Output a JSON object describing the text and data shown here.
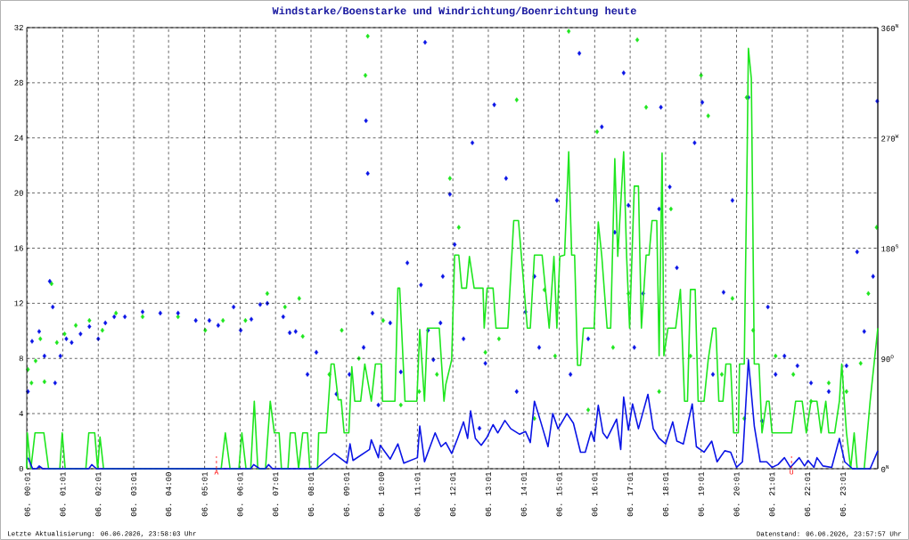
{
  "chart_data": {
    "type": "line",
    "title": "Windstarke/Boenstarke und Windrichtung/Boenrichtung heute",
    "xlim": [
      "2026-06-06T00:00",
      "2026-06-07T00:00"
    ],
    "ylim": [
      0,
      32
    ],
    "y2lim": [
      0,
      360
    ],
    "grid": true,
    "xticks": [
      {
        "value": "2026-06-06T00:01",
        "label": "06. 00:01"
      },
      {
        "value": "2026-06-06T01:01",
        "label": "06. 01:01"
      },
      {
        "value": "2026-06-06T02:01",
        "label": "06. 02:01"
      },
      {
        "value": "2026-06-06T03:01",
        "label": "06. 03:01"
      },
      {
        "value": "2026-06-06T04:00",
        "label": "06. 04:00"
      },
      {
        "value": "2026-06-06T05:01",
        "label": "06. 05:01"
      },
      {
        "value": "2026-06-06T06:01",
        "label": "06. 06:01"
      },
      {
        "value": "2026-06-06T07:01",
        "label": "06. 07:01"
      },
      {
        "value": "2026-06-06T08:01",
        "label": "06. 08:01"
      },
      {
        "value": "2026-06-06T09:01",
        "label": "06. 09:01"
      },
      {
        "value": "2026-06-06T10:00",
        "label": "06. 10:00"
      },
      {
        "value": "2026-06-06T11:01",
        "label": "06. 11:01"
      },
      {
        "value": "2026-06-06T12:01",
        "label": "06. 12:01"
      },
      {
        "value": "2026-06-06T13:01",
        "label": "06. 13:01"
      },
      {
        "value": "2026-06-06T14:01",
        "label": "06. 14:01"
      },
      {
        "value": "2026-06-06T15:01",
        "label": "06. 15:01"
      },
      {
        "value": "2026-06-06T16:01",
        "label": "06. 16:01"
      },
      {
        "value": "2026-06-06T17:01",
        "label": "06. 17:01"
      },
      {
        "value": "2026-06-06T18:01",
        "label": "06. 18:01"
      },
      {
        "value": "2026-06-06T19:01",
        "label": "06. 19:01"
      },
      {
        "value": "2026-06-06T20:01",
        "label": "06. 20:01"
      },
      {
        "value": "2026-06-06T21:01",
        "label": "06. 21:01"
      },
      {
        "value": "2026-06-06T22:01",
        "label": "06. 22:01"
      },
      {
        "value": "2026-06-06T23:01",
        "label": "06. 23:01"
      }
    ],
    "yticks": [
      0,
      4,
      8,
      12,
      16,
      20,
      24,
      28,
      32
    ],
    "y2ticks": [
      {
        "value": 0,
        "label": "0$^{N}$"
      },
      {
        "value": 90,
        "label": "90$^{O}$"
      },
      {
        "value": 180,
        "label": "180$^{S}$"
      },
      {
        "value": 270,
        "label": "270$^{W}$"
      },
      {
        "value": 360,
        "label": "360$^{N}$"
      }
    ],
    "annotations": [
      {
        "text": "A",
        "x": "2026-06-06T05:21",
        "y": 0
      },
      {
        "text": "U",
        "x": "2026-06-06T21:34",
        "y": 0
      },
      "Letzte Aktualisierung: 06.06.2026, 23:58:03 Uhr",
      "Datenstand: 06.06.2026, 23:57:57 Uhr"
    ],
    "series": [
      {
        "type": "scatter",
        "axis": "y2",
        "marker": "diamond",
        "color": "#1ee61e",
        "x": [
          "2026-06-06T00:02",
          "2026-06-06T00:08",
          "2026-06-06T00:15",
          "2026-06-06T00:23",
          "2026-06-06T00:30",
          "2026-06-06T00:42",
          "2026-06-06T00:51",
          "2026-06-06T01:04",
          "2026-06-06T01:23",
          "2026-06-06T01:46",
          "2026-06-06T02:08",
          "2026-06-06T02:31",
          "2026-06-06T03:16",
          "2026-06-06T04:16",
          "2026-06-06T05:02",
          "2026-06-06T05:32",
          "2026-06-06T06:10",
          "2026-06-06T06:47",
          "2026-06-06T07:17",
          "2026-06-06T07:41",
          "2026-06-06T07:47",
          "2026-06-06T08:32",
          "2026-06-06T08:53",
          "2026-06-06T09:22",
          "2026-06-06T09:33",
          "2026-06-06T09:37",
          "2026-06-06T10:03",
          "2026-06-06T10:33",
          "2026-06-06T11:04",
          "2026-06-06T11:34",
          "2026-06-06T11:56",
          "2026-06-06T12:11",
          "2026-06-06T12:56",
          "2026-06-06T13:19",
          "2026-06-06T13:49",
          "2026-06-06T14:19",
          "2026-06-06T14:36",
          "2026-06-06T14:54",
          "2026-06-06T15:17",
          "2026-06-06T15:50",
          "2026-06-06T16:05",
          "2026-06-06T16:32",
          "2026-06-06T16:58",
          "2026-06-06T17:13",
          "2026-06-06T17:28",
          "2026-06-06T17:50",
          "2026-06-06T18:10",
          "2026-06-06T18:43",
          "2026-06-06T19:01",
          "2026-06-06T19:13",
          "2026-06-06T19:36",
          "2026-06-06T19:54",
          "2026-06-06T20:14",
          "2026-06-06T20:18",
          "2026-06-06T20:29",
          "2026-06-06T21:07",
          "2026-06-06T21:37",
          "2026-06-06T22:07",
          "2026-06-06T22:37",
          "2026-06-06T23:07",
          "2026-06-06T23:31",
          "2026-06-06T23:44",
          "2026-06-06T23:58"
        ],
        "values": [
          81,
          70,
          88,
          106,
          71,
          151,
          103,
          110,
          117,
          121,
          113,
          127,
          124,
          124,
          113,
          121,
          121,
          143,
          132,
          139,
          108,
          77,
          113,
          90,
          321,
          353,
          121,
          52,
          63,
          77,
          237,
          197,
          95,
          106,
          301,
          41,
          146,
          92,
          357,
          48,
          275,
          99,
          143,
          350,
          295,
          63,
          212,
          92,
          321,
          288,
          77,
          139,
          41,
          303,
          113,
          92,
          77,
          55,
          70,
          63,
          86,
          143,
          197
        ]
      },
      {
        "type": "scatter",
        "axis": "y2",
        "marker": "diamond",
        "color": "#0a14e6",
        "x": [
          "2026-06-06T00:02",
          "2026-06-06T00:09",
          "2026-06-06T00:21",
          "2026-06-06T00:30",
          "2026-06-06T00:39",
          "2026-06-06T00:44",
          "2026-06-06T00:48",
          "2026-06-06T00:57",
          "2026-06-06T01:07",
          "2026-06-06T01:16",
          "2026-06-06T01:31",
          "2026-06-06T01:46",
          "2026-06-06T02:01",
          "2026-06-06T02:13",
          "2026-06-06T02:28",
          "2026-06-06T02:46",
          "2026-06-06T03:16",
          "2026-06-06T03:46",
          "2026-06-06T04:16",
          "2026-06-06T04:46",
          "2026-06-06T05:09",
          "2026-06-06T05:24",
          "2026-06-06T05:50",
          "2026-06-06T06:02",
          "2026-06-06T06:20",
          "2026-06-06T06:35",
          "2026-06-06T06:47",
          "2026-06-06T07:14",
          "2026-06-06T07:25",
          "2026-06-06T07:35",
          "2026-06-06T07:55",
          "2026-06-06T08:10",
          "2026-06-06T08:44",
          "2026-06-06T09:06",
          "2026-06-06T09:30",
          "2026-06-06T09:34",
          "2026-06-06T09:37",
          "2026-06-06T09:45",
          "2026-06-06T09:55",
          "2026-06-06T10:15",
          "2026-06-06T10:33",
          "2026-06-06T10:44",
          "2026-06-06T11:07",
          "2026-06-06T11:14",
          "2026-06-06T11:19",
          "2026-06-06T11:28",
          "2026-06-06T11:40",
          "2026-06-06T11:44",
          "2026-06-06T11:56",
          "2026-06-06T12:04",
          "2026-06-06T12:19",
          "2026-06-06T12:34",
          "2026-06-06T12:46",
          "2026-06-06T12:56",
          "2026-06-06T13:11",
          "2026-06-06T13:31",
          "2026-06-06T13:49",
          "2026-06-06T14:04",
          "2026-06-06T14:19",
          "2026-06-06T14:27",
          "2026-06-06T14:57",
          "2026-06-06T15:20",
          "2026-06-06T15:35",
          "2026-06-06T15:50",
          "2026-06-06T16:13",
          "2026-06-06T16:35",
          "2026-06-06T16:50",
          "2026-06-06T16:58",
          "2026-06-06T17:08",
          "2026-06-06T17:23",
          "2026-06-06T17:50",
          "2026-06-06T17:53",
          "2026-06-06T18:08",
          "2026-06-06T18:20",
          "2026-06-06T18:50",
          "2026-06-06T19:03",
          "2026-06-06T19:21",
          "2026-06-06T19:39",
          "2026-06-06T19:54",
          "2026-06-06T20:21",
          "2026-06-06T20:44",
          "2026-06-06T20:54",
          "2026-06-06T21:07",
          "2026-06-06T21:22",
          "2026-06-06T21:44",
          "2026-06-06T22:07",
          "2026-06-06T22:37",
          "2026-06-06T23:07",
          "2026-06-06T23:25",
          "2026-06-06T23:37",
          "2026-06-06T23:52",
          "2026-06-06T23:59"
        ],
        "values": [
          63,
          104,
          112,
          92,
          153,
          132,
          70,
          92,
          106,
          103,
          110,
          116,
          106,
          119,
          124,
          124,
          128,
          127,
          127,
          121,
          121,
          117,
          132,
          113,
          122,
          134,
          135,
          124,
          111,
          112,
          77,
          95,
          61,
          77,
          99,
          284,
          241,
          127,
          52,
          119,
          79,
          168,
          150,
          348,
          113,
          89,
          119,
          157,
          224,
          183,
          106,
          266,
          33,
          86,
          297,
          237,
          63,
          128,
          157,
          99,
          219,
          77,
          339,
          106,
          279,
          193,
          323,
          215,
          99,
          143,
          212,
          295,
          230,
          164,
          266,
          299,
          77,
          144,
          219,
          303,
          39,
          132,
          77,
          92,
          84,
          70,
          63,
          84,
          177,
          112,
          157,
          300
        ]
      },
      {
        "type": "line",
        "color": "#1ee61e",
        "x": [
          "2026-06-06T00:00",
          "2026-06-06T00:01",
          "2026-06-06T00:07",
          "2026-06-06T00:14",
          "2026-06-06T00:29",
          "2026-06-06T00:37",
          "2026-06-06T00:56",
          "2026-06-06T01:00",
          "2026-06-06T01:05",
          "2026-06-06T01:40",
          "2026-06-06T01:45",
          "2026-06-06T01:55",
          "2026-06-06T02:00",
          "2026-06-06T02:04",
          "2026-06-06T02:10",
          "2026-06-06T05:29",
          "2026-06-06T05:36",
          "2026-06-06T05:44",
          "2026-06-06T05:59",
          "2026-06-06T06:04",
          "2026-06-06T06:11",
          "2026-06-06T06:19",
          "2026-06-06T06:25",
          "2026-06-06T06:31",
          "2026-06-06T06:44",
          "2026-06-06T06:52",
          "2026-06-06T06:59",
          "2026-06-06T07:07",
          "2026-06-06T07:11",
          "2026-06-06T07:22",
          "2026-06-06T07:26",
          "2026-06-06T07:34",
          "2026-06-06T07:40",
          "2026-06-06T07:47",
          "2026-06-06T07:55",
          "2026-06-06T07:59",
          "2026-06-06T08:12",
          "2026-06-06T08:14",
          "2026-06-06T08:27",
          "2026-06-06T08:35",
          "2026-06-06T08:40",
          "2026-06-06T08:47",
          "2026-06-06T08:52",
          "2026-06-06T08:57",
          "2026-06-06T09:05",
          "2026-06-06T09:10",
          "2026-06-06T09:15",
          "2026-06-06T09:25",
          "2026-06-06T09:32",
          "2026-06-06T09:43",
          "2026-06-06T09:50",
          "2026-06-06T10:00",
          "2026-06-06T10:02",
          "2026-06-06T10:23",
          "2026-06-06T10:28",
          "2026-06-06T10:31",
          "2026-06-06T10:40",
          "2026-06-06T11:00",
          "2026-06-06T11:05",
          "2026-06-06T11:13",
          "2026-06-06T11:18",
          "2026-06-06T11:38",
          "2026-06-06T11:46",
          "2026-06-06T11:49",
          "2026-06-06T11:59",
          "2026-06-06T12:04",
          "2026-06-06T12:11",
          "2026-06-06T12:16",
          "2026-06-06T12:24",
          "2026-06-06T12:29",
          "2026-06-06T12:37",
          "2026-06-06T12:52",
          "2026-06-06T12:54",
          "2026-06-06T12:59",
          "2026-06-06T13:09",
          "2026-06-06T13:14",
          "2026-06-06T13:34",
          "2026-06-06T13:44",
          "2026-06-06T13:52",
          "2026-06-06T14:07",
          "2026-06-06T14:12",
          "2026-06-06T14:19",
          "2026-06-06T14:32",
          "2026-06-06T14:44",
          "2026-06-06T14:52",
          "2026-06-06T14:57",
          "2026-06-06T15:02",
          "2026-06-06T15:10",
          "2026-06-06T15:17",
          "2026-06-06T15:22",
          "2026-06-06T15:27",
          "2026-06-06T15:32",
          "2026-06-06T15:37",
          "2026-06-06T15:42",
          "2026-06-06T16:00",
          "2026-06-06T16:07",
          "2026-06-06T16:13",
          "2026-06-06T16:22",
          "2026-06-06T16:28",
          "2026-06-06T16:35",
          "2026-06-06T16:40",
          "2026-06-06T16:50",
          "2026-06-06T16:55",
          "2026-06-06T17:00",
          "2026-06-06T17:08",
          "2026-06-06T17:15",
          "2026-06-06T17:20",
          "2026-06-06T17:28",
          "2026-06-06T17:33",
          "2026-06-06T17:38",
          "2026-06-06T17:46",
          "2026-06-06T17:50",
          "2026-06-06T17:55",
          "2026-06-06T17:58",
          "2026-06-06T18:05",
          "2026-06-06T18:18",
          "2026-06-06T18:26",
          "2026-06-06T18:33",
          "2026-06-06T18:38",
          "2026-06-06T18:43",
          "2026-06-06T18:51",
          "2026-06-06T18:56",
          "2026-06-06T19:06",
          "2026-06-06T19:13",
          "2026-06-06T19:21",
          "2026-06-06T19:26",
          "2026-06-06T19:31",
          "2026-06-06T19:38",
          "2026-06-06T19:43",
          "2026-06-06T19:51",
          "2026-06-06T19:56",
          "2026-06-06T20:04",
          "2026-06-06T20:06",
          "2026-06-06T20:14",
          "2026-06-06T20:19",
          "2026-06-06T20:21",
          "2026-06-06T20:26",
          "2026-06-06T20:31",
          "2026-06-06T20:39",
          "2026-06-06T20:44",
          "2026-06-06T20:52",
          "2026-06-06T20:56",
          "2026-06-06T21:01",
          "2026-06-06T21:34",
          "2026-06-06T21:41",
          "2026-06-06T21:52",
          "2026-06-06T21:59",
          "2026-06-06T22:07",
          "2026-06-06T22:17",
          "2026-06-06T22:24",
          "2026-06-06T22:32",
          "2026-06-06T22:37",
          "2026-06-06T22:47",
          "2026-06-06T22:55",
          "2026-06-06T22:59",
          "2026-06-06T23:07",
          "2026-06-06T23:14",
          "2026-06-06T23:20",
          "2026-06-06T23:25",
          "2026-06-06T23:37",
          "2026-06-06T23:47",
          "2026-06-07T00:00"
        ],
        "values": [
          0,
          2.6,
          0,
          2.6,
          2.6,
          0,
          0,
          2.6,
          0,
          0,
          2.6,
          2.6,
          0,
          2.3,
          0,
          0,
          2.6,
          0,
          0,
          2.6,
          0,
          0,
          4.9,
          0,
          0,
          4.9,
          2.6,
          2.6,
          0,
          0,
          2.6,
          2.6,
          0,
          2.6,
          2.6,
          0,
          0,
          2.6,
          2.6,
          7.6,
          7.6,
          5.0,
          5.0,
          2.6,
          2.6,
          7.4,
          4.9,
          4.9,
          7.6,
          4.9,
          7.6,
          7.6,
          4.9,
          4.9,
          13.1,
          13.1,
          4.9,
          4.9,
          10.1,
          4.9,
          10.2,
          10.2,
          4.9,
          6.1,
          7.9,
          15.5,
          15.5,
          13.1,
          13.1,
          15.4,
          13.1,
          13.1,
          10.2,
          13.1,
          13.1,
          10.2,
          10.2,
          18.0,
          18.0,
          10.2,
          10.2,
          15.5,
          15.5,
          10.2,
          15.4,
          10.2,
          15.4,
          15.5,
          23.0,
          15.5,
          15.5,
          7.5,
          7.5,
          10.2,
          10.2,
          17.9,
          15.4,
          10.2,
          10.2,
          22.5,
          15.4,
          23.0,
          15.4,
          10.2,
          20.5,
          20.5,
          10.2,
          15.5,
          15.5,
          18.0,
          18.0,
          8.2,
          22.9,
          8.2,
          10.2,
          10.2,
          13.0,
          4.9,
          4.9,
          13.0,
          13.0,
          4.9,
          4.9,
          7.9,
          10.2,
          10.2,
          4.9,
          4.9,
          7.6,
          7.6,
          2.6,
          2.6,
          7.6,
          7.6,
          23.1,
          30.5,
          28.3,
          7.6,
          7.6,
          2.6,
          4.9,
          4.9,
          2.6,
          2.6,
          4.9,
          4.9,
          2.6,
          4.9,
          4.9,
          2.6,
          4.9,
          2.6,
          2.6,
          4.9,
          7.6,
          2.6,
          0,
          2.6,
          0,
          0,
          4.9,
          10.2
        ]
      },
      {
        "type": "line",
        "color": "#0a14e6",
        "x": [
          "2026-06-06T00:02",
          "2026-06-06T00:10",
          "2026-06-06T00:17",
          "2026-06-06T00:21",
          "2026-06-06T00:27",
          "2026-06-06T01:45",
          "2026-06-06T01:50",
          "2026-06-06T01:58",
          "2026-06-06T06:19",
          "2026-06-06T06:24",
          "2026-06-06T06:34",
          "2026-06-06T06:44",
          "2026-06-06T06:49",
          "2026-06-06T06:56",
          "2026-06-06T08:10",
          "2026-06-06T08:40",
          "2026-06-06T09:02",
          "2026-06-06T09:07",
          "2026-06-06T09:12",
          "2026-06-06T09:40",
          "2026-06-06T09:43",
          "2026-06-06T09:55",
          "2026-06-06T09:58",
          "2026-06-06T10:15",
          "2026-06-06T10:28",
          "2026-06-06T10:38",
          "2026-06-06T11:01",
          "2026-06-06T11:05",
          "2026-06-06T11:13",
          "2026-06-06T11:31",
          "2026-06-06T11:41",
          "2026-06-06T11:49",
          "2026-06-06T11:59",
          "2026-06-06T12:09",
          "2026-06-06T12:19",
          "2026-06-06T12:26",
          "2026-06-06T12:31",
          "2026-06-06T12:39",
          "2026-06-06T12:49",
          "2026-06-06T12:59",
          "2026-06-06T13:09",
          "2026-06-06T13:17",
          "2026-06-06T13:29",
          "2026-06-06T13:39",
          "2026-06-06T13:54",
          "2026-06-06T14:04",
          "2026-06-06T14:12",
          "2026-06-06T14:19",
          "2026-06-06T14:29",
          "2026-06-06T14:42",
          "2026-06-06T14:50",
          "2026-06-06T14:59",
          "2026-06-06T15:14",
          "2026-06-06T15:25",
          "2026-06-06T15:37",
          "2026-06-06T15:45",
          "2026-06-06T15:55",
          "2026-06-06T16:00",
          "2026-06-06T16:07",
          "2026-06-06T16:15",
          "2026-06-06T16:22",
          "2026-06-06T16:38",
          "2026-06-06T16:45",
          "2026-06-06T16:50",
          "2026-06-06T16:58",
          "2026-06-06T17:05",
          "2026-06-06T17:15",
          "2026-06-06T17:31",
          "2026-06-06T17:40",
          "2026-06-06T17:50",
          "2026-06-06T18:01",
          "2026-06-06T18:13",
          "2026-06-06T18:20",
          "2026-06-06T18:31",
          "2026-06-06T18:46",
          "2026-06-06T18:53",
          "2026-06-06T19:06",
          "2026-06-06T19:19",
          "2026-06-06T19:28",
          "2026-06-06T19:41",
          "2026-06-06T19:51",
          "2026-06-06T20:01",
          "2026-06-06T20:11",
          "2026-06-06T20:21",
          "2026-06-06T20:31",
          "2026-06-06T20:41",
          "2026-06-06T20:52",
          "2026-06-06T21:01",
          "2026-06-06T21:11",
          "2026-06-06T21:22",
          "2026-06-06T21:32",
          "2026-06-06T21:47",
          "2026-06-06T21:56",
          "2026-06-06T22:02",
          "2026-06-06T22:12",
          "2026-06-06T22:17",
          "2026-06-06T22:27",
          "2026-06-06T22:42",
          "2026-06-06T22:55",
          "2026-06-06T23:04",
          "2026-06-06T23:17",
          "2026-06-06T23:47",
          "2026-06-07T00:00"
        ],
        "values": [
          0.8,
          0,
          0,
          0.2,
          0,
          0,
          0.3,
          0,
          0,
          0.3,
          0,
          0,
          0.3,
          0,
          0,
          1.1,
          0.4,
          1.8,
          0.6,
          1.4,
          2.1,
          0.8,
          1.7,
          0.7,
          1.8,
          0.4,
          0.8,
          3.1,
          0.5,
          2.6,
          1.6,
          1.9,
          1.1,
          2.2,
          3.4,
          2.2,
          4.2,
          2.2,
          1.7,
          2.3,
          3.2,
          2.6,
          3.5,
          2.9,
          2.5,
          2.7,
          1.9,
          4.9,
          3.5,
          1.6,
          4.0,
          2.9,
          4.0,
          3.3,
          1.2,
          1.2,
          2.7,
          2.0,
          4.6,
          2.6,
          2.2,
          3.6,
          1.4,
          5.2,
          2.8,
          4.7,
          2.9,
          5.4,
          2.9,
          2.2,
          1.8,
          3.4,
          2.0,
          1.8,
          4.7,
          1.6,
          1.2,
          2.0,
          0.5,
          1.3,
          1.2,
          0.1,
          0.5,
          7.9,
          3.1,
          0.5,
          0.5,
          0.1,
          0.3,
          0.8,
          0.1,
          0.8,
          0.2,
          0.6,
          0.1,
          0.8,
          0.2,
          0.1,
          2.2,
          0.5,
          0,
          0,
          1.3
        ]
      }
    ]
  }
}
